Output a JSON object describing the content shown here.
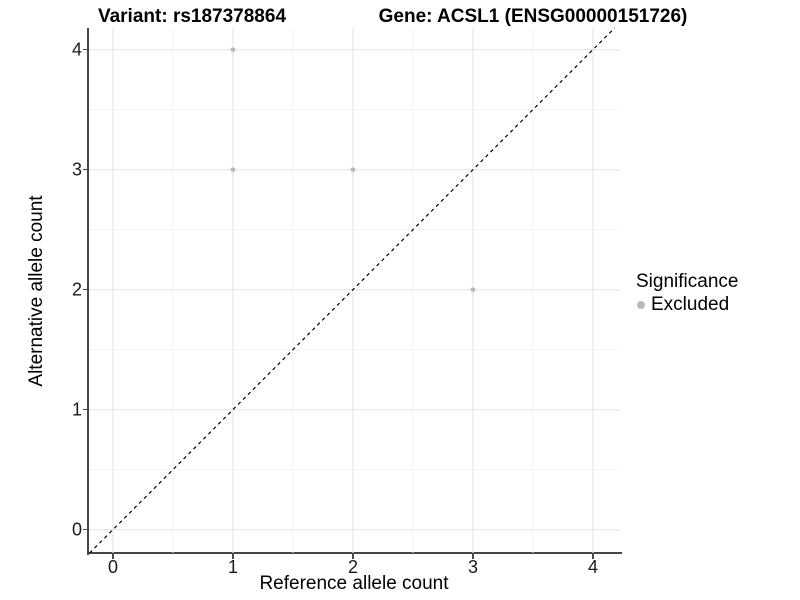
{
  "titles": {
    "left": "Variant: rs187378864",
    "right": "Gene: ACSL1 (ENSG00000151726)"
  },
  "chart_data": {
    "type": "scatter",
    "xlabel": "Reference allele count",
    "ylabel": "Alternative allele count",
    "xlim": [
      -0.2,
      4.225
    ],
    "ylim": [
      -0.195,
      4.18
    ],
    "xticks": [
      0,
      1,
      2,
      3,
      4
    ],
    "yticks": [
      0,
      1,
      2,
      3,
      4
    ],
    "grid": {
      "major": true,
      "minor": true,
      "major_color": "#e7e7e7",
      "minor_color": "#f2f2f2"
    },
    "axis_color": "#464646",
    "series": [
      {
        "name": "Excluded",
        "color": "#b9b9b9",
        "point_radius": 2.4,
        "points": [
          [
            1,
            4
          ],
          [
            1,
            3
          ],
          [
            2,
            3
          ],
          [
            3,
            2
          ]
        ]
      }
    ],
    "reference_line": {
      "type": "identity",
      "style": "dashed",
      "color": "#000000"
    },
    "legend": {
      "title": "Significance",
      "position": "right",
      "entries": [
        {
          "label": "Excluded",
          "color": "#b9b9b9"
        }
      ]
    }
  }
}
